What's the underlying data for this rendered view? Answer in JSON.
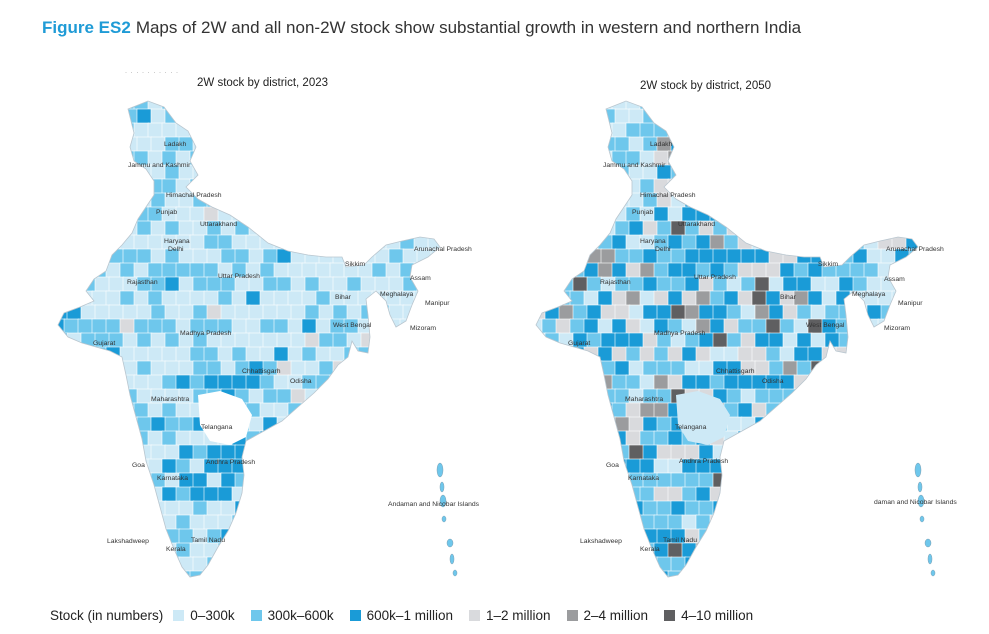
{
  "figure": {
    "number": "Figure ES2",
    "title": "Maps of 2W and all non-2W stock show substantial growth in western and northern India"
  },
  "colors": {
    "c0": "#cde9f6",
    "c1": "#6ec7ec",
    "c2": "#1a9bd7",
    "c3": "#d9dadd",
    "c4": "#9b9c9e",
    "c5": "#5f5f61",
    "border": "#ffffff"
  },
  "maps": [
    {
      "id": "map-2023",
      "title": "2W stock by district, 2023",
      "labels": [
        "Ladakh",
        "Jammu and Kashmir",
        "Himachal Pradesh",
        "Punjab",
        "Uttarakhand",
        "Haryana",
        "Delhi",
        "Rajasthan",
        "Uttar Pradesh",
        "Arunachal Pradesh",
        "Sikkim",
        "Assam",
        "Bihar",
        "Meghalaya",
        "Manipur",
        "West Bengal",
        "Mizoram",
        "Madhya Pradesh",
        "Gujarat",
        "Chhattisgarh",
        "Odisha",
        "Maharashtra",
        "Telangana",
        "Andhra Pradesh",
        "Goa",
        "Karnataka",
        "Andaman and Nicobar Islands",
        "Lakshadweep",
        "Tamil Nadu",
        "Kerala"
      ]
    },
    {
      "id": "map-2050",
      "title": "2W stock by district, 2050",
      "labels": [
        "Ladakh",
        "Jammu and Kashmir",
        "Himachal Pradesh",
        "Punjab",
        "Uttarakhand",
        "Haryana",
        "Delhi",
        "Rajasthan",
        "Uttar Pradesh",
        "Arunachal Pradesh",
        "Sikkim",
        "Assam",
        "Bihar",
        "Meghalaya",
        "Manipur",
        "West Bengal",
        "Mizoram",
        "Madhya Pradesh",
        "Gujarat",
        "Chhattisgarh",
        "Odisha",
        "Maharashtra",
        "Telangana",
        "Andhra Pradesh",
        "Goa",
        "Karnataka",
        "daman and Nicobar Islands",
        "Lakshadweep",
        "Tamil Nadu",
        "Kerala"
      ]
    }
  ],
  "legend": {
    "title": "Stock (in numbers)",
    "items": [
      {
        "label": "0–300k",
        "color": "#cde9f6"
      },
      {
        "label": "300k–600k",
        "color": "#6ec7ec"
      },
      {
        "label": "600k–1 million",
        "color": "#1a9bd7"
      },
      {
        "label": "1–2 million",
        "color": "#d9dadd"
      },
      {
        "label": "2–4 million",
        "color": "#9b9c9e"
      },
      {
        "label": "4–10 million",
        "color": "#5f5f61"
      }
    ]
  }
}
